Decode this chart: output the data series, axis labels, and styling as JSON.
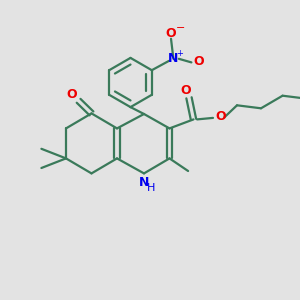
{
  "bg_color": "#e3e3e3",
  "bond_color": "#3a7a5a",
  "N_color": "#0000ee",
  "O_color": "#ee0000",
  "lw": 1.6,
  "figsize": [
    3.0,
    3.0
  ],
  "dpi": 100,
  "xlim": [
    0,
    10
  ],
  "ylim": [
    0,
    10
  ]
}
